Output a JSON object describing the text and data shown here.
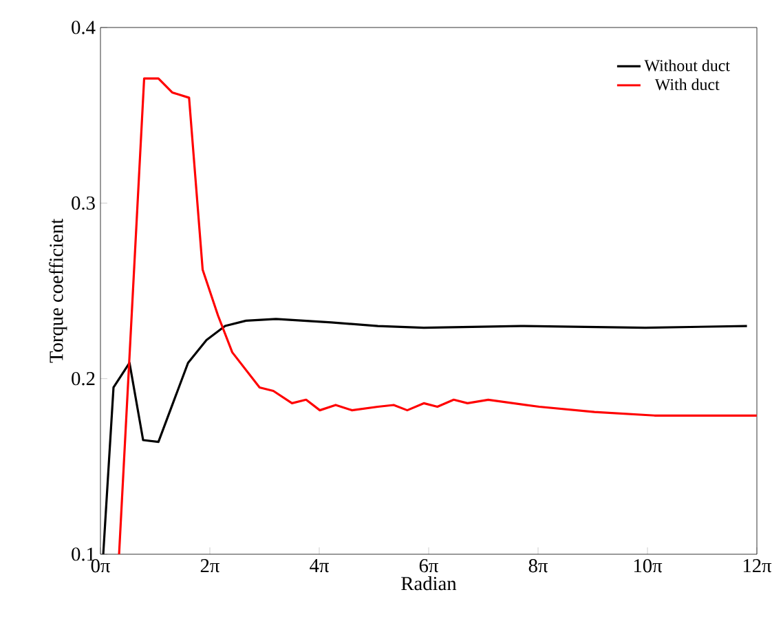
{
  "chart_data": {
    "type": "line",
    "xlabel": "Radian",
    "ylabel": "Torque coefficient",
    "xlim": [
      0,
      37.699
    ],
    "ylim": [
      0.1,
      0.4
    ],
    "xticks": [
      {
        "value": 0,
        "label": "0π"
      },
      {
        "value": 6.283,
        "label": "2π"
      },
      {
        "value": 12.566,
        "label": "4π"
      },
      {
        "value": 18.85,
        "label": "6π"
      },
      {
        "value": 25.133,
        "label": "8π"
      },
      {
        "value": 31.416,
        "label": "10π"
      },
      {
        "value": 37.699,
        "label": "12π"
      }
    ],
    "yticks": [
      0.1,
      0.2,
      0.3,
      0.4
    ],
    "legend": "top right",
    "grid": false,
    "marker": "none",
    "line_style": "solid",
    "series": [
      {
        "name": "Without duct",
        "color": "#000000",
        "x": [
          0.16,
          0.75,
          1.67,
          2.45,
          3.33,
          5.03,
          6.09,
          7.16,
          8.36,
          10.08,
          13.26,
          15.93,
          18.57,
          24.13,
          31.29,
          37.13
        ],
        "values": [
          0.1,
          0.195,
          0.209,
          0.165,
          0.164,
          0.209,
          0.222,
          0.23,
          0.233,
          0.234,
          0.232,
          0.23,
          0.229,
          0.23,
          0.229,
          0.23
        ]
      },
      {
        "name": "With duct",
        "color": "#ff0000",
        "x": [
          1.07,
          2.51,
          3.33,
          4.12,
          5.09,
          5.87,
          6.75,
          7.57,
          9.14,
          9.93,
          11.0,
          11.81,
          12.6,
          13.51,
          14.45,
          15.93,
          16.84,
          17.62,
          18.57,
          19.35,
          20.29,
          21.08,
          22.27,
          25.2,
          28.37,
          31.82,
          37.69
        ],
        "values": [
          0.1,
          0.371,
          0.371,
          0.363,
          0.36,
          0.262,
          0.236,
          0.215,
          0.195,
          0.193,
          0.186,
          0.188,
          0.182,
          0.185,
          0.182,
          0.184,
          0.185,
          0.182,
          0.186,
          0.184,
          0.188,
          0.186,
          0.188,
          0.184,
          0.181,
          0.179,
          0.179
        ]
      }
    ]
  }
}
